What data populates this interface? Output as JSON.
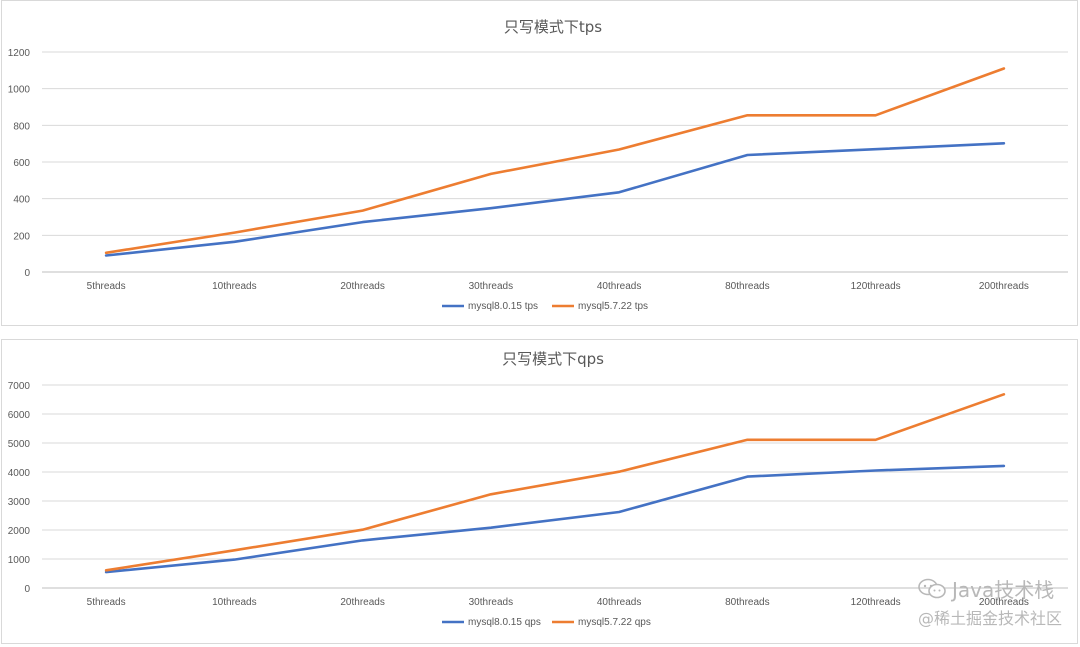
{
  "chart_data": [
    {
      "type": "line",
      "title": "只写模式下tps",
      "categories": [
        "5threads",
        "10threads",
        "20threads",
        "30threads",
        "40threads",
        "80threads",
        "120threads",
        "200threads"
      ],
      "ylim": [
        0,
        1200
      ],
      "yticks": [
        "0",
        "200",
        "400",
        "600",
        "800",
        "1000",
        "1200"
      ],
      "grid": true,
      "legend_position": "bottom",
      "series": [
        {
          "name": "mysql8.0.15 tps",
          "color": "#4472c4",
          "values": [
            90,
            165,
            272,
            348,
            435,
            638,
            670,
            702
          ]
        },
        {
          "name": "mysql5.7.22 tps",
          "color": "#ed7d31",
          "values": [
            105,
            215,
            335,
            535,
            668,
            855,
            855,
            1110
          ]
        }
      ]
    },
    {
      "type": "line",
      "title": "只写模式下qps",
      "categories": [
        "5threads",
        "10threads",
        "20threads",
        "30threads",
        "40threads",
        "80threads",
        "120threads",
        "200threads"
      ],
      "ylim": [
        0,
        7000
      ],
      "yticks": [
        "0",
        "1000",
        "2000",
        "3000",
        "4000",
        "5000",
        "6000",
        "7000"
      ],
      "grid": true,
      "legend_position": "bottom",
      "series": [
        {
          "name": "mysql8.0.15 qps",
          "color": "#4472c4",
          "values": [
            550,
            980,
            1640,
            2080,
            2620,
            3840,
            4050,
            4210
          ]
        },
        {
          "name": "mysql5.7.22 qps",
          "color": "#ed7d31",
          "values": [
            610,
            1300,
            2010,
            3230,
            4010,
            5110,
            5110,
            6680
          ]
        }
      ]
    }
  ],
  "watermark": {
    "line1": "Java技术栈",
    "line2": "@稀土掘金技术社区",
    "icon": "wechat-icon"
  }
}
